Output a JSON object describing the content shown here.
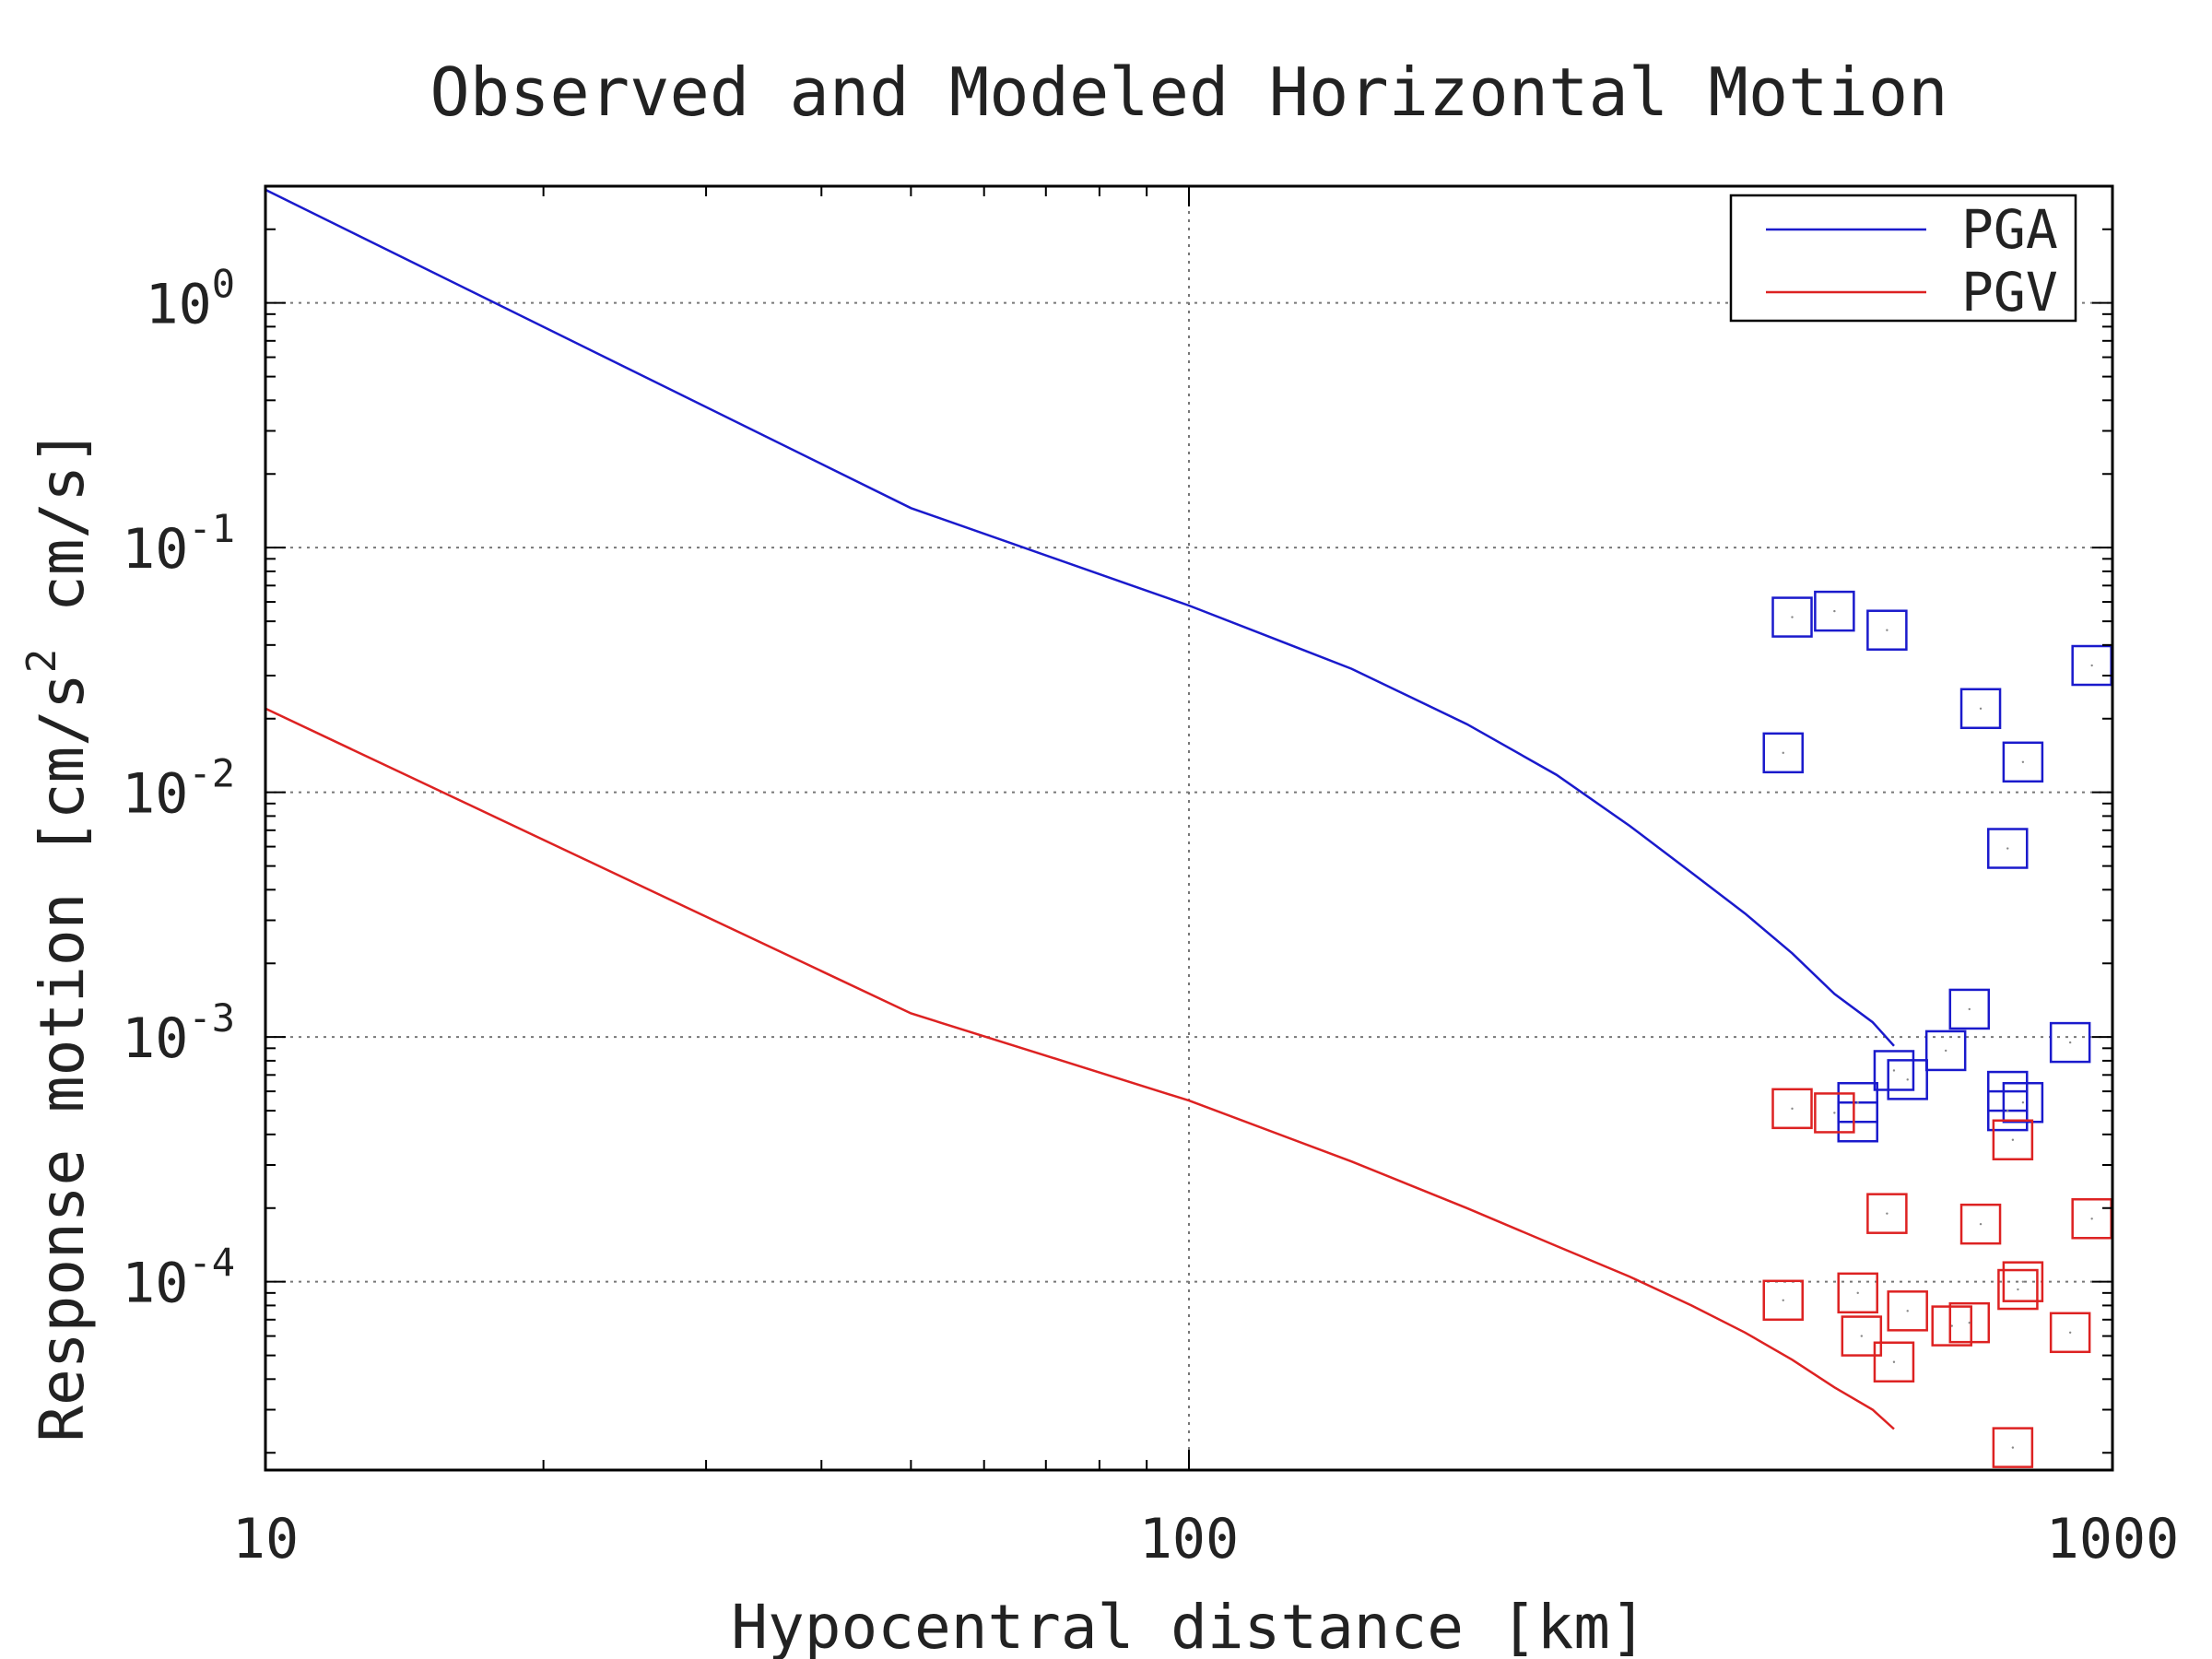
{
  "chart_data": {
    "type": "scatter",
    "title": "Observed and Modeled Horizontal Motion",
    "xlabel": "Hypocentral distance [km]",
    "ylabel_parts": [
      "Response motion [cm/s",
      "2",
      " cm/s]"
    ],
    "xscale": "log",
    "yscale": "log",
    "xlim": [
      10,
      1000
    ],
    "ylim": [
      1.7e-05,
      3.0
    ],
    "x_ticks": [
      {
        "value": 10,
        "label": "10"
      },
      {
        "value": 100,
        "label": "100"
      },
      {
        "value": 1000,
        "label": "1000"
      }
    ],
    "y_ticks": [
      {
        "value": 1,
        "base": "10",
        "exp": "0"
      },
      {
        "value": 0.1,
        "base": "10",
        "exp": "-1"
      },
      {
        "value": 0.01,
        "base": "10",
        "exp": "-2"
      },
      {
        "value": 0.001,
        "base": "10",
        "exp": "-3"
      },
      {
        "value": 0.0001,
        "base": "10",
        "exp": "-4"
      }
    ],
    "grid": true,
    "legend_position": "top-right",
    "series": [
      {
        "name": "PGA",
        "kind": "line",
        "color": "#1a1acc",
        "points": [
          [
            10,
            2.9
          ],
          [
            50,
            0.145
          ],
          [
            100,
            0.058
          ],
          [
            150,
            0.032
          ],
          [
            200,
            0.019
          ],
          [
            250,
            0.0118
          ],
          [
            300,
            0.0073
          ],
          [
            350,
            0.0047
          ],
          [
            400,
            0.0032
          ],
          [
            450,
            0.0022
          ],
          [
            500,
            0.0015
          ],
          [
            550,
            0.00115
          ],
          [
            580,
            0.00092
          ]
        ]
      },
      {
        "name": "PGV",
        "kind": "line",
        "color": "#dd2222",
        "points": [
          [
            10,
            0.022
          ],
          [
            50,
            0.00125
          ],
          [
            100,
            0.00055
          ],
          [
            150,
            0.00031
          ],
          [
            200,
            0.0002
          ],
          [
            250,
            0.00014
          ],
          [
            300,
            0.000105
          ],
          [
            350,
            8e-05
          ],
          [
            400,
            6.2e-05
          ],
          [
            450,
            4.8e-05
          ],
          [
            500,
            3.7e-05
          ],
          [
            550,
            3e-05
          ],
          [
            580,
            2.5e-05
          ]
        ]
      },
      {
        "name": "",
        "kind": "markers",
        "color": "#1a1acc",
        "points": [
          [
            440,
            0.0145
          ],
          [
            450,
            0.052
          ],
          [
            500,
            0.055
          ],
          [
            570,
            0.046
          ],
          [
            530,
            0.00045
          ],
          [
            530,
            0.00054
          ],
          [
            580,
            0.00073
          ],
          [
            600,
            0.00067
          ],
          [
            660,
            0.00088
          ],
          [
            700,
            0.0013
          ],
          [
            720,
            0.022
          ],
          [
            770,
            0.0006
          ],
          [
            770,
            0.0005
          ],
          [
            800,
            0.0133
          ],
          [
            800,
            0.00054
          ],
          [
            770,
            0.0059
          ],
          [
            900,
            0.00095
          ],
          [
            950,
            0.033
          ]
        ]
      },
      {
        "name": "",
        "kind": "markers",
        "color": "#dd2222",
        "points": [
          [
            440,
            8.4e-05
          ],
          [
            450,
            0.00051
          ],
          [
            500,
            0.00049
          ],
          [
            530,
            9e-05
          ],
          [
            535,
            6e-05
          ],
          [
            570,
            0.00019
          ],
          [
            580,
            4.7e-05
          ],
          [
            600,
            7.6e-05
          ],
          [
            670,
            6.6e-05
          ],
          [
            700,
            6.8e-05
          ],
          [
            720,
            0.000172
          ],
          [
            780,
            2.1e-05
          ],
          [
            780,
            0.00038
          ],
          [
            790,
            9.3e-05
          ],
          [
            800,
            0.0001
          ],
          [
            900,
            6.2e-05
          ],
          [
            950,
            0.000181
          ]
        ]
      }
    ]
  }
}
